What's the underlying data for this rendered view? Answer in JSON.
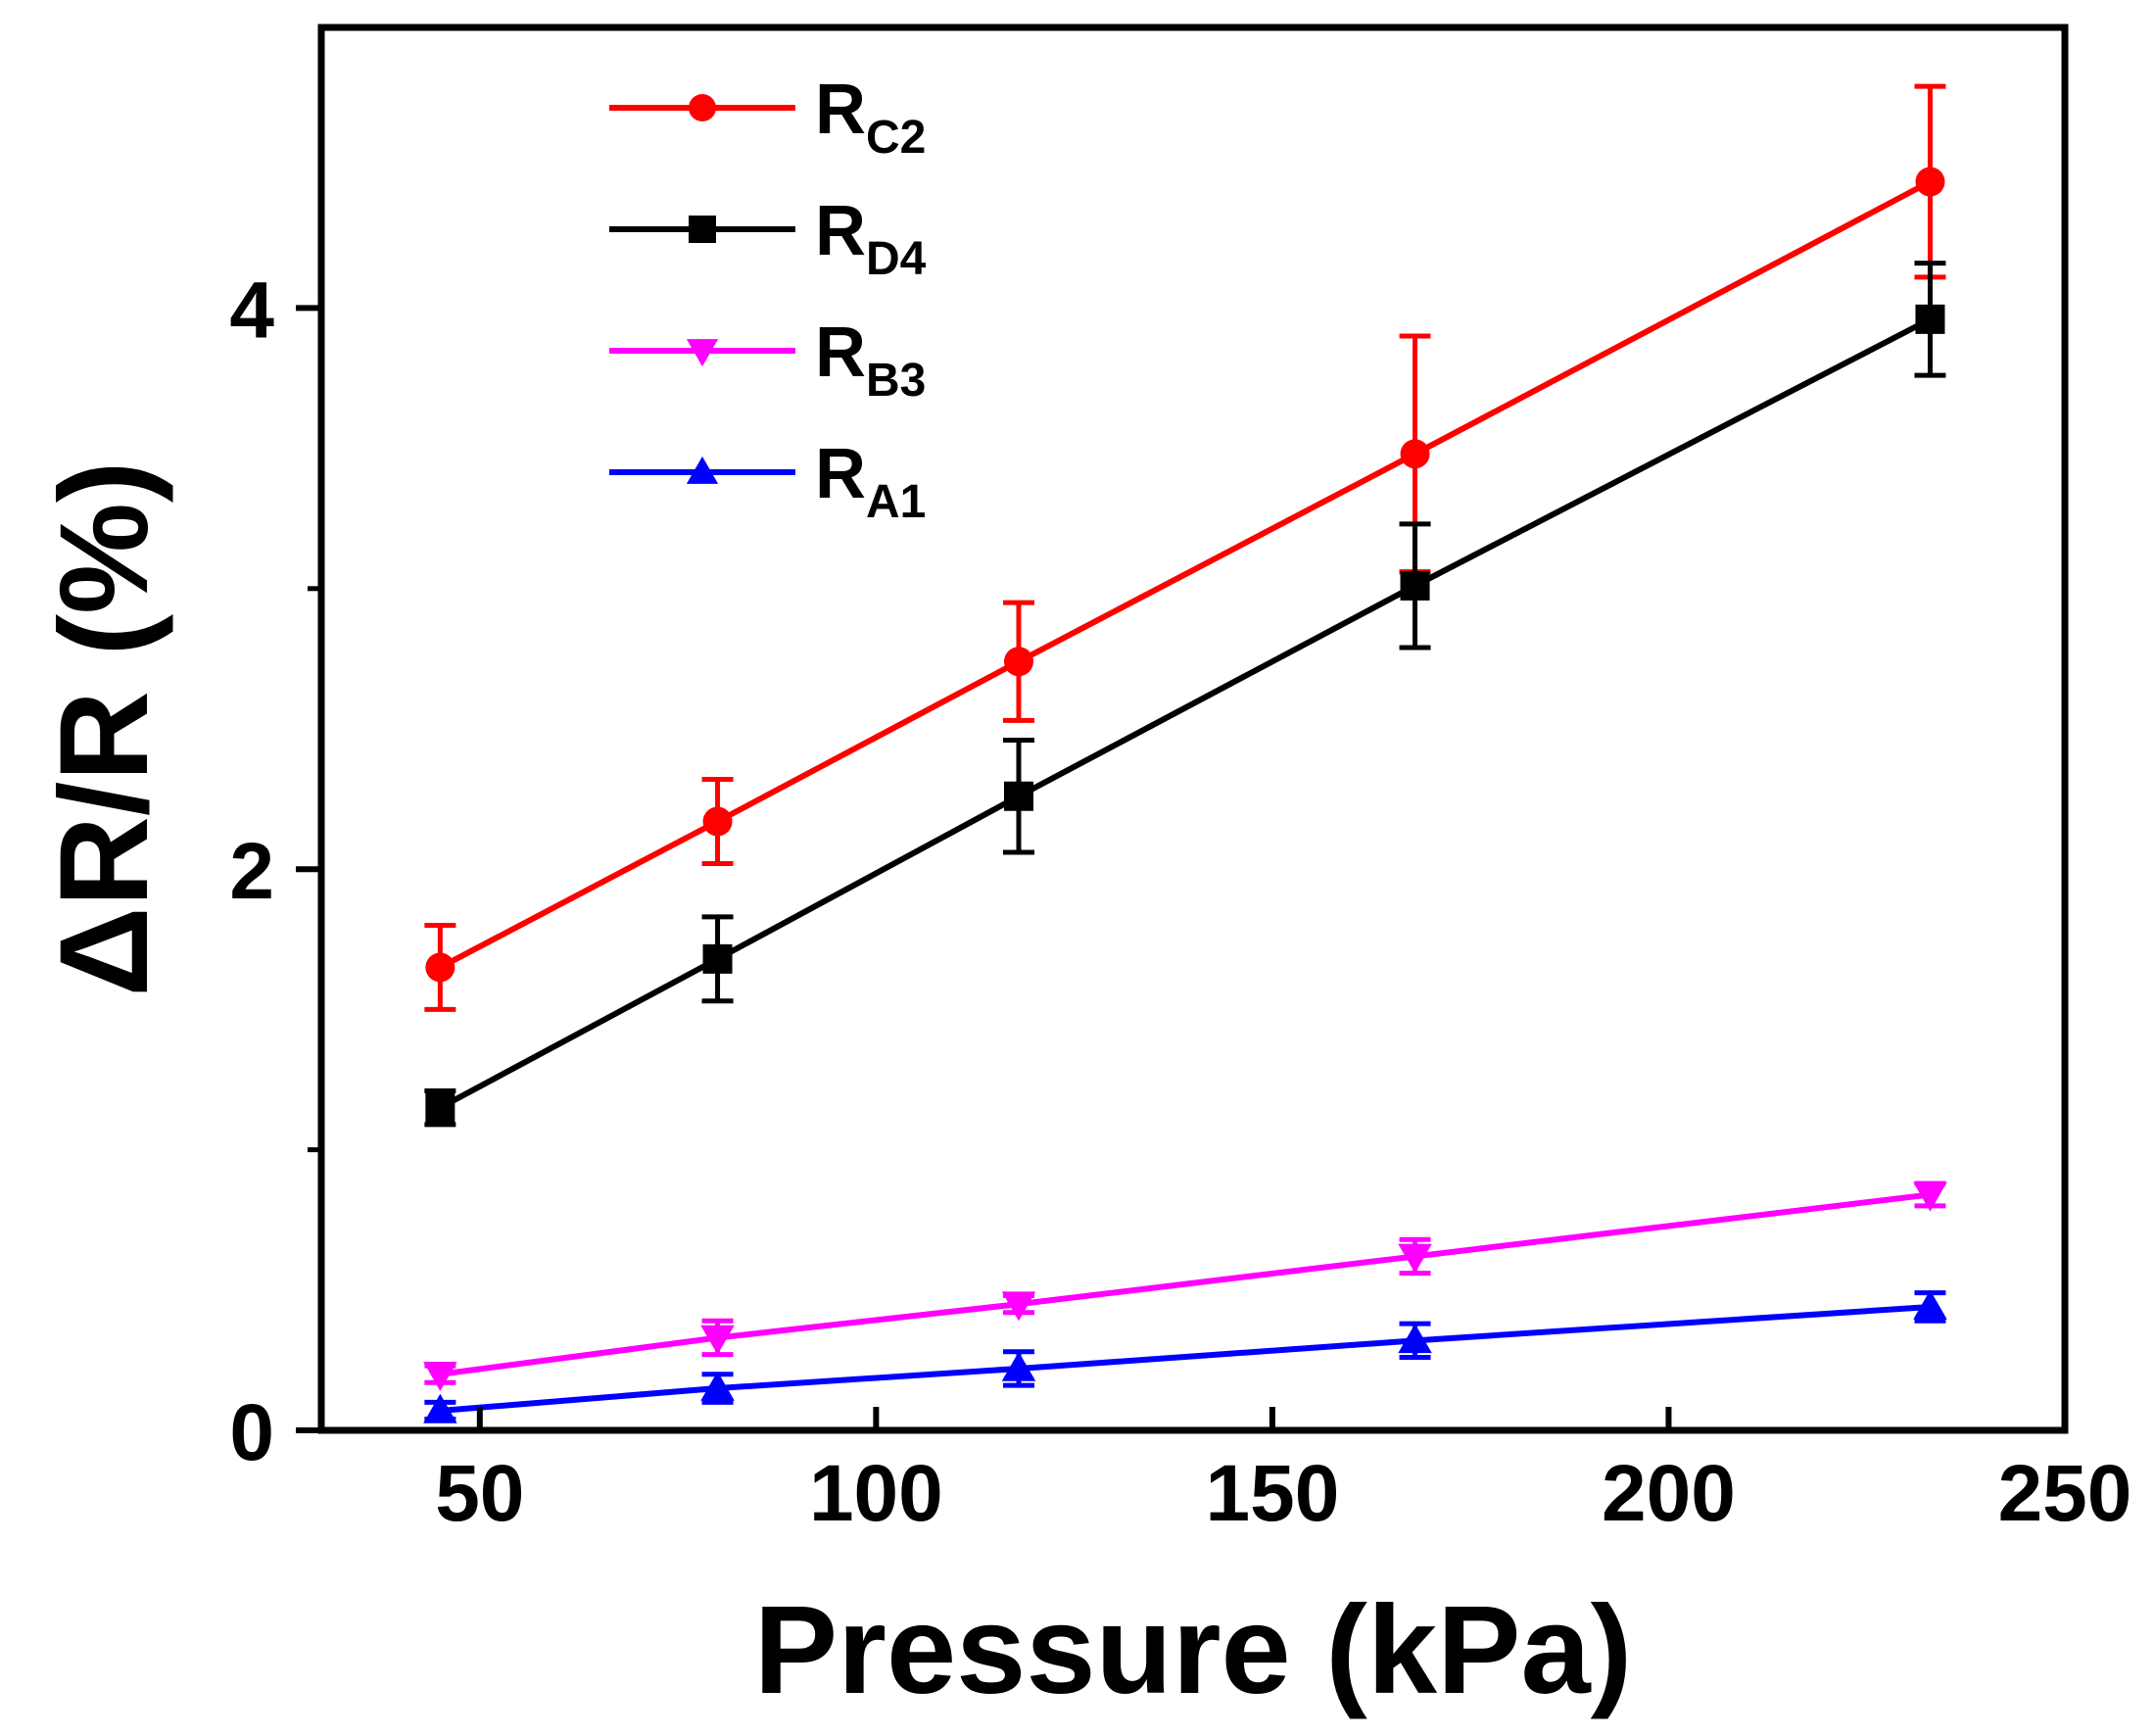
{
  "chart_data": {
    "type": "line",
    "xlabel": "Pressure (kPa)",
    "ylabel": "ΔR/R (%)",
    "xlim": [
      30,
      250
    ],
    "ylim": [
      0,
      5
    ],
    "xticks": [
      50,
      100,
      150,
      200,
      250
    ],
    "yticks": [
      0,
      2,
      4
    ],
    "yminor": [
      1,
      3
    ],
    "legend_position": "top-left",
    "series": [
      {
        "name": "RC2",
        "main": "R",
        "sub": "C2",
        "color": "#ff0000",
        "marker": "circle",
        "x": [
          45,
          80,
          118,
          168,
          233
        ],
        "y": [
          1.65,
          2.17,
          2.74,
          3.48,
          4.45
        ],
        "err": [
          0.15,
          0.15,
          0.21,
          0.42,
          0.34
        ]
      },
      {
        "name": "RD4",
        "main": "R",
        "sub": "D4",
        "color": "#000000",
        "marker": "square",
        "x": [
          45,
          80,
          118,
          168,
          233
        ],
        "y": [
          1.15,
          1.68,
          2.26,
          3.01,
          3.96
        ],
        "err": [
          0.06,
          0.15,
          0.2,
          0.22,
          0.2
        ]
      },
      {
        "name": "RB3",
        "main": "R",
        "sub": "B3",
        "color": "#ff00ff",
        "marker": "triangle-down",
        "x": [
          45,
          80,
          118,
          168,
          233
        ],
        "y": [
          0.2,
          0.33,
          0.45,
          0.62,
          0.84
        ],
        "err": [
          0.03,
          0.06,
          0.03,
          0.06,
          0.04
        ]
      },
      {
        "name": "RA1",
        "main": "R",
        "sub": "A1",
        "color": "#0000ff",
        "marker": "triangle-up",
        "x": [
          45,
          80,
          118,
          168,
          233
        ],
        "y": [
          0.07,
          0.15,
          0.22,
          0.32,
          0.44
        ],
        "err": [
          0.03,
          0.05,
          0.06,
          0.06,
          0.05
        ]
      }
    ]
  }
}
